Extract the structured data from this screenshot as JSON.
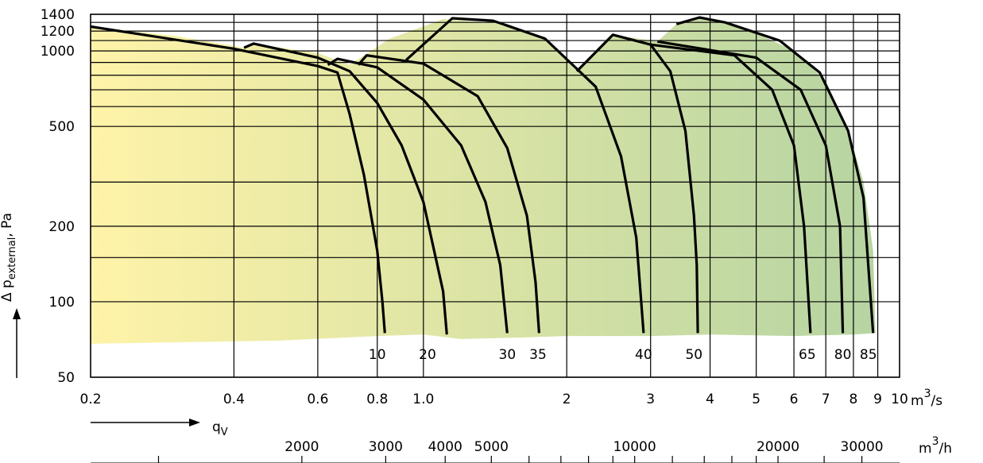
{
  "chart_data": {
    "type": "line",
    "title": "",
    "x_scale": "log",
    "y_scale": "log",
    "xlim": [
      0.2,
      10
    ],
    "ylim": [
      50,
      1400
    ],
    "grid": true,
    "xlabel": "q",
    "xlabel_sub": "V",
    "ylabel_prefix": "Δ p",
    "ylabel_sub": "external",
    "ylabel_suffix": ", Pa",
    "x_unit": "m",
    "x_unit_tail": "/s",
    "x2_unit": "m",
    "x2_unit_tail": "/h",
    "unit_exponent": "3",
    "y_ticks": [
      {
        "v": 50,
        "label": "50"
      },
      {
        "v": 100,
        "label": "100"
      },
      {
        "v": 200,
        "label": "200"
      },
      {
        "v": 500,
        "label": "500"
      },
      {
        "v": 1000,
        "label": "1000"
      },
      {
        "v": 1200,
        "label": "1200"
      },
      {
        "v": 1400,
        "label": "1400"
      }
    ],
    "y_grid": [
      50,
      100,
      150,
      200,
      300,
      500,
      600,
      700,
      800,
      900,
      1000,
      1100,
      1200,
      1300,
      1400
    ],
    "x_ticks": [
      {
        "v": 0.2,
        "label": "0.2"
      },
      {
        "v": 0.4,
        "label": "0.4"
      },
      {
        "v": 0.6,
        "label": "0.6"
      },
      {
        "v": 0.8,
        "label": "0.8"
      },
      {
        "v": 1.0,
        "label": "1.0"
      },
      {
        "v": 2,
        "label": "2"
      },
      {
        "v": 3,
        "label": "3"
      },
      {
        "v": 4,
        "label": "4"
      },
      {
        "v": 5,
        "label": "5"
      },
      {
        "v": 6,
        "label": "6"
      },
      {
        "v": 7,
        "label": "7"
      },
      {
        "v": 8,
        "label": "8"
      },
      {
        "v": 9,
        "label": "9"
      },
      {
        "v": 10,
        "label": "10"
      }
    ],
    "x2_ticks": [
      {
        "v": 2000,
        "label": "2000"
      },
      {
        "v": 3000,
        "label": "3000"
      },
      {
        "v": 4000,
        "label": "4000"
      },
      {
        "v": 5000,
        "label": "5000"
      },
      {
        "v": 10000,
        "label": "10000"
      },
      {
        "v": 20000,
        "label": "20000"
      },
      {
        "v": 30000,
        "label": "30000"
      }
    ],
    "x2_minor": [
      1000,
      2000,
      3000,
      4000,
      5000,
      6000,
      7000,
      8000,
      9000,
      10000,
      12000,
      14000,
      16000,
      18000,
      20000,
      25000,
      30000
    ],
    "envelope": {
      "color_start": "#fff3a8",
      "color_end": "#b6d4a2",
      "lower": [
        [
          0.2,
          68
        ],
        [
          0.5,
          70
        ],
        [
          0.8,
          73
        ],
        [
          1.0,
          74
        ],
        [
          1.2,
          71
        ],
        [
          1.6,
          72
        ],
        [
          2.0,
          73
        ],
        [
          3.0,
          73
        ],
        [
          4.0,
          74
        ],
        [
          6.0,
          73
        ],
        [
          8.0,
          74
        ],
        [
          8.9,
          75
        ]
      ],
      "upper": [
        [
          0.2,
          1250
        ],
        [
          0.3,
          1150
        ],
        [
          0.42,
          1030
        ],
        [
          0.44,
          1070
        ],
        [
          0.6,
          980
        ],
        [
          0.7,
          880
        ],
        [
          0.85,
          1120
        ],
        [
          1.1,
          1340
        ],
        [
          1.5,
          1280
        ],
        [
          1.8,
          1120
        ],
        [
          2.1,
          830
        ],
        [
          2.5,
          1160
        ],
        [
          3.1,
          1090
        ],
        [
          3.4,
          1280
        ],
        [
          3.8,
          1360
        ],
        [
          4.3,
          1300
        ],
        [
          5.0,
          1180
        ],
        [
          6.0,
          1000
        ],
        [
          7.0,
          760
        ],
        [
          7.8,
          480
        ],
        [
          8.4,
          300
        ],
        [
          8.8,
          160
        ],
        [
          8.9,
          75
        ]
      ]
    },
    "series": [
      {
        "name": "10",
        "label_x": 0.8,
        "points": [
          [
            0.2,
            1250
          ],
          [
            0.4,
            1020
          ],
          [
            0.6,
            870
          ],
          [
            0.66,
            820
          ],
          [
            0.7,
            560
          ],
          [
            0.75,
            320
          ],
          [
            0.8,
            160
          ],
          [
            0.82,
            100
          ],
          [
            0.83,
            75
          ]
        ]
      },
      {
        "name": "20",
        "label_x": 1.02,
        "points": [
          [
            0.42,
            1030
          ],
          [
            0.44,
            1070
          ],
          [
            0.6,
            940
          ],
          [
            0.7,
            830
          ],
          [
            0.8,
            620
          ],
          [
            0.9,
            420
          ],
          [
            1.0,
            250
          ],
          [
            1.1,
            110
          ],
          [
            1.12,
            74
          ]
        ]
      },
      {
        "name": "30",
        "label_x": 1.5,
        "points": [
          [
            0.63,
            880
          ],
          [
            0.66,
            930
          ],
          [
            0.8,
            860
          ],
          [
            1.0,
            640
          ],
          [
            1.2,
            420
          ],
          [
            1.35,
            250
          ],
          [
            1.45,
            140
          ],
          [
            1.5,
            75
          ]
        ]
      },
      {
        "name": "35",
        "label_x": 1.74,
        "points": [
          [
            0.73,
            880
          ],
          [
            0.76,
            960
          ],
          [
            1.0,
            890
          ],
          [
            1.3,
            660
          ],
          [
            1.5,
            410
          ],
          [
            1.65,
            220
          ],
          [
            1.72,
            120
          ],
          [
            1.75,
            75
          ]
        ]
      },
      {
        "name": "40",
        "label_x": 2.9,
        "points": [
          [
            0.92,
            920
          ],
          [
            1.15,
            1350
          ],
          [
            1.4,
            1320
          ],
          [
            1.8,
            1120
          ],
          [
            2.3,
            720
          ],
          [
            2.6,
            380
          ],
          [
            2.8,
            180
          ],
          [
            2.9,
            75
          ]
        ]
      },
      {
        "name": "50",
        "label_x": 3.7,
        "points": [
          [
            2.1,
            830
          ],
          [
            2.5,
            1160
          ],
          [
            3.0,
            1060
          ],
          [
            3.3,
            830
          ],
          [
            3.55,
            480
          ],
          [
            3.7,
            220
          ],
          [
            3.75,
            140
          ],
          [
            3.77,
            75
          ]
        ]
      },
      {
        "name": "65",
        "label_x": 6.4,
        "points": [
          [
            3.0,
            1060
          ],
          [
            4.5,
            960
          ],
          [
            5.4,
            700
          ],
          [
            6.0,
            420
          ],
          [
            6.3,
            200
          ],
          [
            6.5,
            75
          ]
        ]
      },
      {
        "name": "80",
        "label_x": 7.6,
        "points": [
          [
            3.1,
            1090
          ],
          [
            5.0,
            940
          ],
          [
            6.2,
            700
          ],
          [
            7.0,
            420
          ],
          [
            7.5,
            200
          ],
          [
            7.6,
            75
          ]
        ]
      },
      {
        "name": "85",
        "label_x": 8.6,
        "points": [
          [
            3.4,
            1280
          ],
          [
            3.8,
            1360
          ],
          [
            4.3,
            1300
          ],
          [
            5.6,
            1100
          ],
          [
            6.8,
            820
          ],
          [
            7.8,
            480
          ],
          [
            8.4,
            260
          ],
          [
            8.8,
            75
          ]
        ]
      }
    ]
  }
}
